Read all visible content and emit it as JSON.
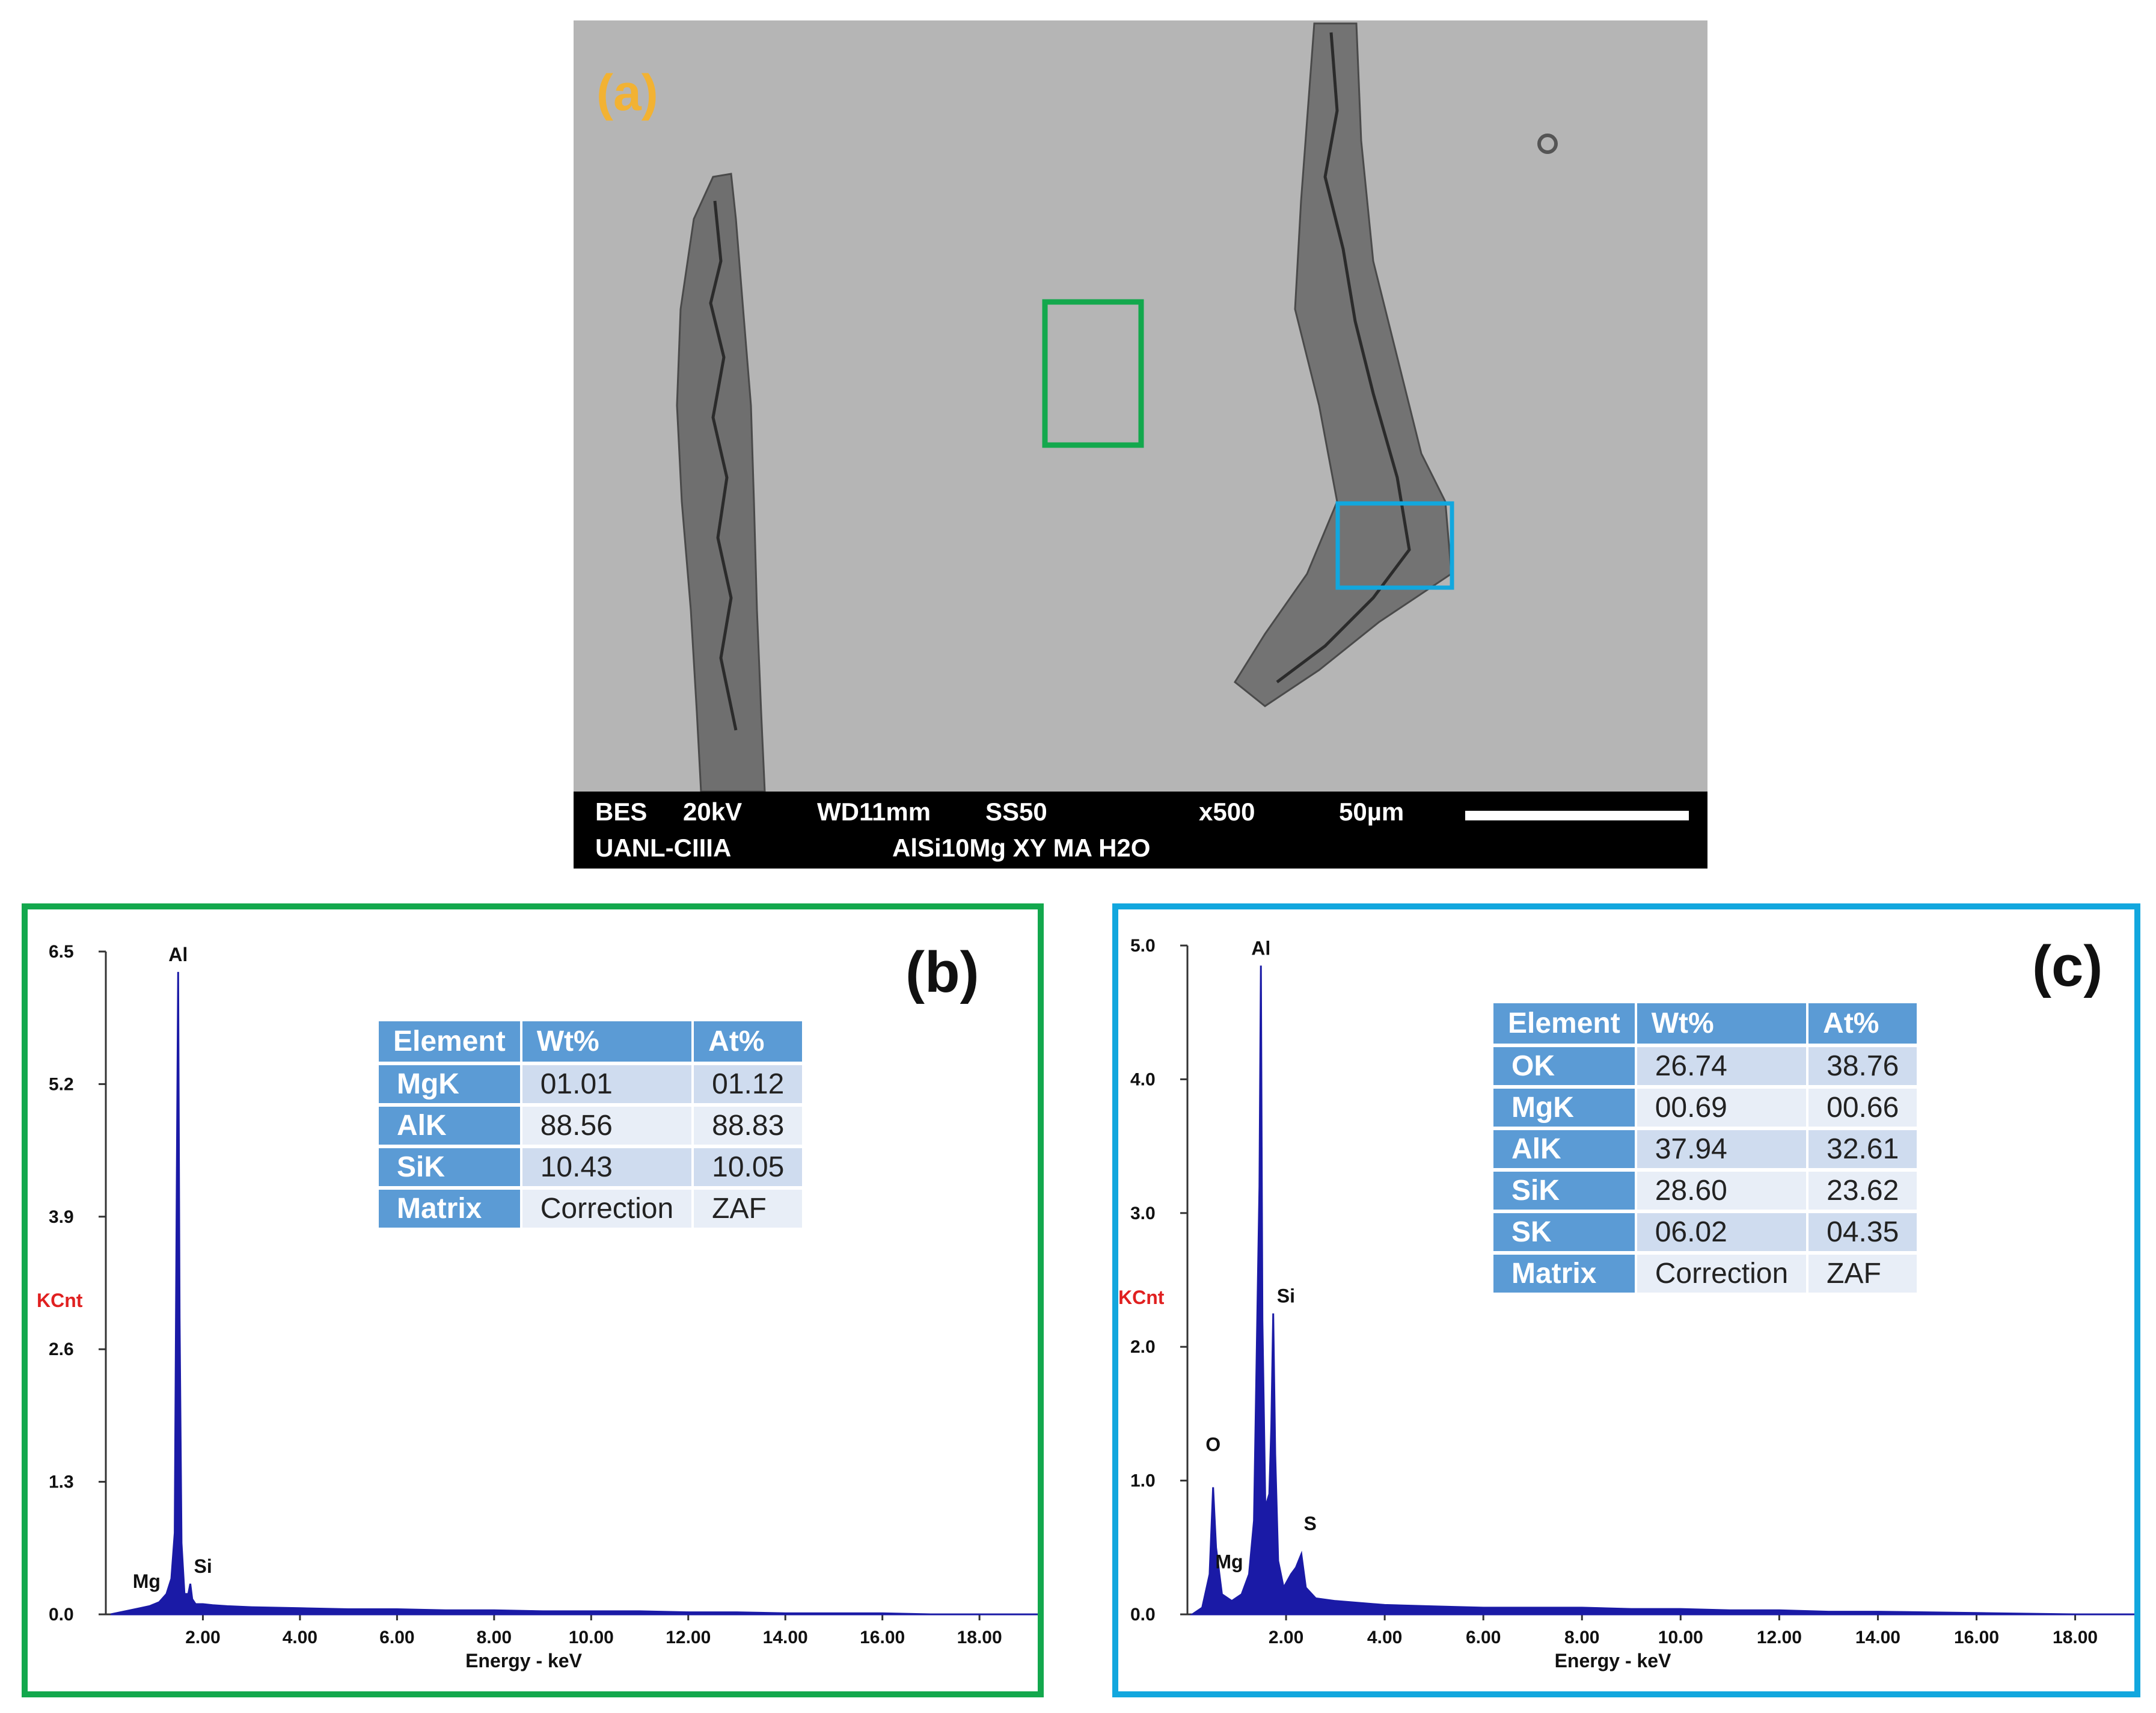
{
  "panel_a": {
    "label": "(a)",
    "info_bar": {
      "mode": "BES",
      "voltage": "20kV",
      "wd": "WD11mm",
      "ss": "SS50",
      "mag": "x500",
      "scale": "50µm",
      "lab": "UANL-CIIIA",
      "sample": "AlSi10Mg  XY MA H2O"
    },
    "colors": {
      "green_box": "#13a84d",
      "blue_box": "#12a7de",
      "label": "#f2b233"
    }
  },
  "chart_data": [
    {
      "type": "line",
      "panel": "(b)",
      "xlabel": "Energy - keV",
      "ylabel": "KCnt",
      "xlim": [
        0,
        19.2
      ],
      "ylim": [
        0,
        6.5
      ],
      "xticks": [
        "2.00",
        "4.00",
        "6.00",
        "8.00",
        "10.00",
        "12.00",
        "14.00",
        "16.00",
        "18.00"
      ],
      "yticks": [
        "0.0",
        "1.3",
        "2.6",
        "3.9",
        "5.2",
        "6.5"
      ],
      "peaks": [
        {
          "label": "Mg",
          "x": 1.25,
          "y": 0.2
        },
        {
          "label": "Al",
          "x": 1.49,
          "y": 6.3
        },
        {
          "label": "Si",
          "x": 1.74,
          "y": 0.3
        }
      ],
      "spectrum": {
        "x": [
          0.1,
          0.3,
          0.5,
          0.7,
          0.9,
          1.1,
          1.25,
          1.35,
          1.42,
          1.46,
          1.49,
          1.52,
          1.56,
          1.62,
          1.7,
          1.74,
          1.78,
          1.85,
          2.0,
          2.2,
          2.5,
          3.0,
          4.0,
          5.0,
          6.0,
          7.0,
          8.0,
          9.0,
          10.0,
          11.0,
          12.0,
          13.0,
          14.0,
          15.0,
          16.0,
          17.0,
          18.0,
          19.2
        ],
        "y": [
          0.0,
          0.02,
          0.04,
          0.06,
          0.08,
          0.12,
          0.2,
          0.35,
          0.8,
          4.1,
          6.3,
          2.9,
          0.7,
          0.2,
          0.2,
          0.3,
          0.15,
          0.1,
          0.1,
          0.09,
          0.08,
          0.07,
          0.06,
          0.05,
          0.05,
          0.04,
          0.04,
          0.03,
          0.03,
          0.03,
          0.02,
          0.02,
          0.01,
          0.01,
          0.01,
          0.0,
          0.0,
          0.0
        ]
      },
      "table": {
        "headers": [
          "Element",
          "Wt%",
          "At%"
        ],
        "rows": [
          [
            "MgK",
            "01.01",
            "01.12"
          ],
          [
            "AlK",
            "88.56",
            "88.83"
          ],
          [
            "SiK",
            "10.43",
            "10.05"
          ],
          [
            "Matrix",
            "Correction",
            "ZAF"
          ]
        ]
      },
      "colors": {
        "spectrum": "#1a1aa6",
        "ylabel": "#e02020",
        "border": "#13a84d"
      }
    },
    {
      "type": "line",
      "panel": "(c)",
      "xlabel": "Energy - keV",
      "ylabel": "KCnt",
      "xlim": [
        0,
        19.2
      ],
      "ylim": [
        0,
        5.0
      ],
      "xticks": [
        "2.00",
        "4.00",
        "6.00",
        "8.00",
        "10.00",
        "12.00",
        "14.00",
        "16.00",
        "18.00"
      ],
      "yticks": [
        "0.0",
        "1.0",
        "2.0",
        "3.0",
        "4.0",
        "5.0"
      ],
      "peaks": [
        {
          "label": "O",
          "x": 0.52,
          "y": 0.95
        },
        {
          "label": "Mg",
          "x": 1.25,
          "y": 0.3
        },
        {
          "label": "Al",
          "x": 1.49,
          "y": 4.85
        },
        {
          "label": "Si",
          "x": 1.74,
          "y": 2.25
        },
        {
          "label": "S",
          "x": 2.31,
          "y": 0.45
        }
      ],
      "spectrum": {
        "x": [
          0.1,
          0.3,
          0.45,
          0.52,
          0.58,
          0.7,
          0.9,
          1.1,
          1.25,
          1.35,
          1.42,
          1.46,
          1.49,
          1.52,
          1.58,
          1.66,
          1.7,
          1.74,
          1.78,
          1.84,
          1.95,
          2.1,
          2.2,
          2.31,
          2.4,
          2.6,
          3.0,
          4.0,
          5.0,
          6.0,
          7.0,
          8.0,
          9.0,
          10.0,
          11.0,
          12.0,
          13.0,
          14.0,
          16.0,
          18.0,
          19.2
        ],
        "y": [
          0.0,
          0.05,
          0.3,
          0.95,
          0.5,
          0.15,
          0.1,
          0.15,
          0.3,
          0.7,
          2.3,
          3.2,
          4.85,
          2.2,
          0.8,
          0.9,
          1.4,
          2.25,
          1.2,
          0.4,
          0.2,
          0.3,
          0.35,
          0.45,
          0.2,
          0.12,
          0.1,
          0.07,
          0.06,
          0.05,
          0.05,
          0.05,
          0.04,
          0.04,
          0.03,
          0.03,
          0.02,
          0.02,
          0.01,
          0.0,
          0.0
        ]
      },
      "table": {
        "headers": [
          "Element",
          "Wt%",
          "At%"
        ],
        "rows": [
          [
            "OK",
            "26.74",
            "38.76"
          ],
          [
            "MgK",
            "00.69",
            "00.66"
          ],
          [
            "AlK",
            "37.94",
            "32.61"
          ],
          [
            "SiK",
            "28.60",
            "23.62"
          ],
          [
            "SK",
            "06.02",
            "04.35"
          ],
          [
            "Matrix",
            "Correction",
            "ZAF"
          ]
        ]
      },
      "colors": {
        "spectrum": "#1a1aa6",
        "ylabel": "#e02020",
        "border": "#12a7de"
      }
    }
  ]
}
